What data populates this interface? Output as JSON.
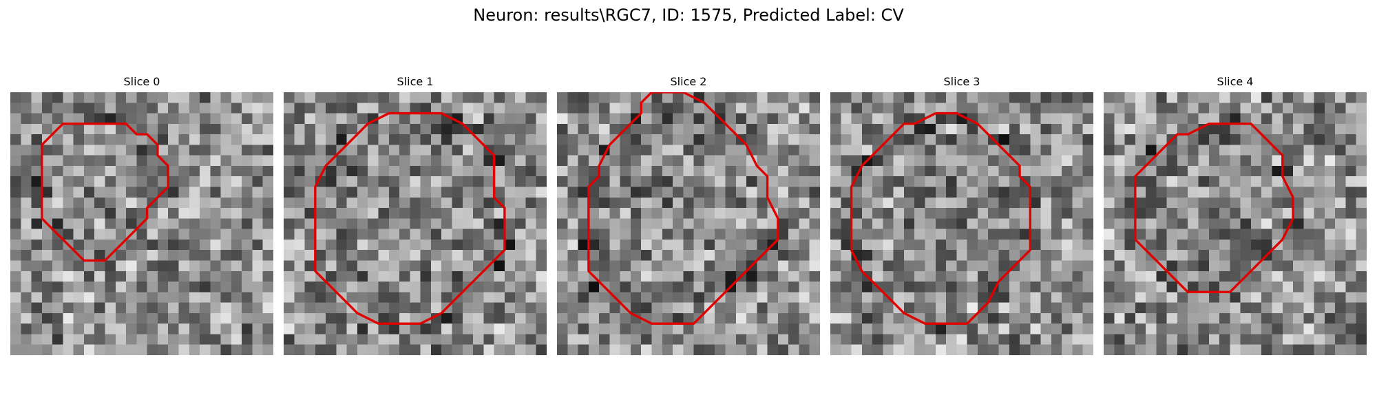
{
  "figure": {
    "title": "Neuron: results\\RGC7, ID: 1575, Predicted Label: CV"
  },
  "panels": [
    {
      "title": "Slice 0",
      "seed": 11,
      "contour": [
        [
          9,
          3
        ],
        [
          11,
          3
        ],
        [
          12,
          4
        ],
        [
          13,
          4
        ],
        [
          14,
          5
        ],
        [
          14,
          6
        ],
        [
          15,
          7
        ],
        [
          15,
          8
        ],
        [
          15,
          9
        ],
        [
          14,
          10
        ],
        [
          13,
          11
        ],
        [
          13,
          12
        ],
        [
          12,
          13
        ],
        [
          11,
          14
        ],
        [
          10,
          15
        ],
        [
          9,
          16
        ],
        [
          8,
          16
        ],
        [
          7,
          16
        ],
        [
          6,
          15
        ],
        [
          5,
          14
        ],
        [
          4,
          13
        ],
        [
          3,
          12
        ],
        [
          3,
          11
        ],
        [
          3,
          9
        ],
        [
          3,
          7
        ],
        [
          3,
          5
        ],
        [
          4,
          4
        ],
        [
          5,
          3
        ],
        [
          7,
          3
        ]
      ]
    },
    {
      "title": "Slice 1",
      "seed": 23,
      "contour": [
        [
          12,
          2
        ],
        [
          15,
          2
        ],
        [
          17,
          3
        ],
        [
          18,
          4
        ],
        [
          19,
          5
        ],
        [
          20,
          6
        ],
        [
          20,
          8
        ],
        [
          20,
          10
        ],
        [
          21,
          11
        ],
        [
          21,
          13
        ],
        [
          21,
          15
        ],
        [
          20,
          16
        ],
        [
          19,
          17
        ],
        [
          18,
          18
        ],
        [
          17,
          19
        ],
        [
          16,
          20
        ],
        [
          15,
          21
        ],
        [
          13,
          22
        ],
        [
          11,
          22
        ],
        [
          9,
          22
        ],
        [
          7,
          21
        ],
        [
          6,
          20
        ],
        [
          5,
          19
        ],
        [
          4,
          18
        ],
        [
          3,
          17
        ],
        [
          3,
          15
        ],
        [
          3,
          13
        ],
        [
          3,
          11
        ],
        [
          3,
          9
        ],
        [
          4,
          7
        ],
        [
          5,
          6
        ],
        [
          6,
          5
        ],
        [
          7,
          4
        ],
        [
          8,
          3
        ],
        [
          10,
          2
        ]
      ]
    },
    {
      "title": "Slice 2",
      "seed": 37,
      "contour": [
        [
          9,
          0
        ],
        [
          12,
          0
        ],
        [
          14,
          1
        ],
        [
          15,
          2
        ],
        [
          16,
          3
        ],
        [
          17,
          4
        ],
        [
          18,
          5
        ],
        [
          19,
          7
        ],
        [
          20,
          8
        ],
        [
          20,
          10
        ],
        [
          21,
          12
        ],
        [
          21,
          14
        ],
        [
          20,
          15
        ],
        [
          19,
          16
        ],
        [
          18,
          17
        ],
        [
          17,
          18
        ],
        [
          16,
          19
        ],
        [
          15,
          20
        ],
        [
          14,
          21
        ],
        [
          13,
          22
        ],
        [
          11,
          22
        ],
        [
          9,
          22
        ],
        [
          7,
          21
        ],
        [
          6,
          20
        ],
        [
          5,
          19
        ],
        [
          4,
          18
        ],
        [
          3,
          17
        ],
        [
          3,
          15
        ],
        [
          3,
          13
        ],
        [
          3,
          11
        ],
        [
          3,
          9
        ],
        [
          4,
          8
        ],
        [
          4,
          7
        ],
        [
          5,
          5
        ],
        [
          6,
          4
        ],
        [
          7,
          3
        ],
        [
          8,
          2
        ],
        [
          8,
          1
        ]
      ]
    },
    {
      "title": "Slice 3",
      "seed": 53,
      "contour": [
        [
          10,
          2
        ],
        [
          12,
          2
        ],
        [
          14,
          3
        ],
        [
          15,
          4
        ],
        [
          16,
          5
        ],
        [
          17,
          6
        ],
        [
          18,
          7
        ],
        [
          18,
          8
        ],
        [
          19,
          9
        ],
        [
          19,
          11
        ],
        [
          19,
          13
        ],
        [
          19,
          15
        ],
        [
          18,
          16
        ],
        [
          17,
          17
        ],
        [
          16,
          18
        ],
        [
          15,
          20
        ],
        [
          14,
          21
        ],
        [
          13,
          22
        ],
        [
          11,
          22
        ],
        [
          9,
          22
        ],
        [
          7,
          21
        ],
        [
          6,
          20
        ],
        [
          5,
          19
        ],
        [
          4,
          18
        ],
        [
          3,
          17
        ],
        [
          2,
          15
        ],
        [
          2,
          13
        ],
        [
          2,
          11
        ],
        [
          2,
          9
        ],
        [
          3,
          7
        ],
        [
          4,
          6
        ],
        [
          5,
          5
        ],
        [
          6,
          4
        ],
        [
          7,
          3
        ],
        [
          8,
          3
        ]
      ]
    },
    {
      "title": "Slice 4",
      "seed": 71,
      "contour": [
        [
          12,
          3
        ],
        [
          14,
          3
        ],
        [
          15,
          4
        ],
        [
          16,
          5
        ],
        [
          17,
          6
        ],
        [
          17,
          8
        ],
        [
          18,
          10
        ],
        [
          18,
          12
        ],
        [
          17,
          14
        ],
        [
          16,
          15
        ],
        [
          15,
          16
        ],
        [
          14,
          17
        ],
        [
          13,
          18
        ],
        [
          12,
          19
        ],
        [
          10,
          19
        ],
        [
          8,
          19
        ],
        [
          7,
          18
        ],
        [
          6,
          17
        ],
        [
          5,
          16
        ],
        [
          4,
          15
        ],
        [
          3,
          14
        ],
        [
          3,
          12
        ],
        [
          3,
          10
        ],
        [
          3,
          8
        ],
        [
          4,
          7
        ],
        [
          5,
          6
        ],
        [
          6,
          5
        ],
        [
          7,
          4
        ],
        [
          8,
          4
        ],
        [
          10,
          3
        ]
      ]
    }
  ]
}
